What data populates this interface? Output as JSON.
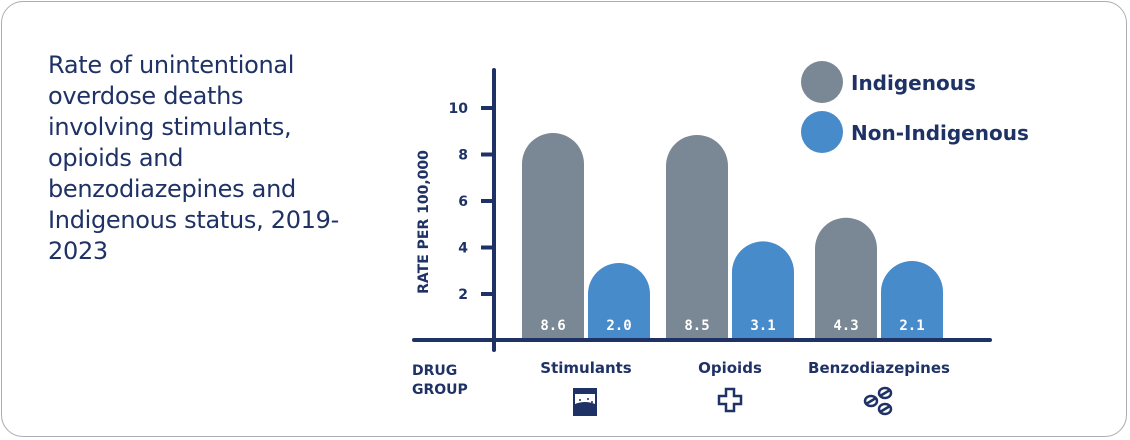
{
  "title": "Rate of unintentional overdose deaths involving stimulants, opioids and benzodiazepines and Indigenous status, 2019-2023",
  "colors": {
    "indigenous": "#7a8794",
    "non_indigenous": "#478bca",
    "axis": "#1f3266"
  },
  "chart_data": {
    "type": "bar",
    "title": "Rate of unintentional overdose deaths involving stimulants, opioids and benzodiazepines and Indigenous status, 2019-2023",
    "xlabel": "DRUG GROUP",
    "ylabel": "RATE PER 100,000",
    "yticks": [
      "2",
      "4",
      "6",
      "8",
      "10"
    ],
    "categories": [
      "Stimulants",
      "Opioids",
      "Benzodiazepines"
    ],
    "category_icons": [
      "jar-icon",
      "cross-icon",
      "pills-icon"
    ],
    "series": [
      {
        "name": "Indigenous",
        "values": [
          8.6,
          8.5,
          4.3
        ],
        "labels": [
          "8.6",
          "8.5",
          "4.3"
        ]
      },
      {
        "name": "Non-Indigenous",
        "values": [
          2.0,
          3.1,
          2.1
        ],
        "labels": [
          "2.0",
          "3.1",
          "2.1"
        ]
      }
    ],
    "legend": "top-right",
    "grid": false
  }
}
